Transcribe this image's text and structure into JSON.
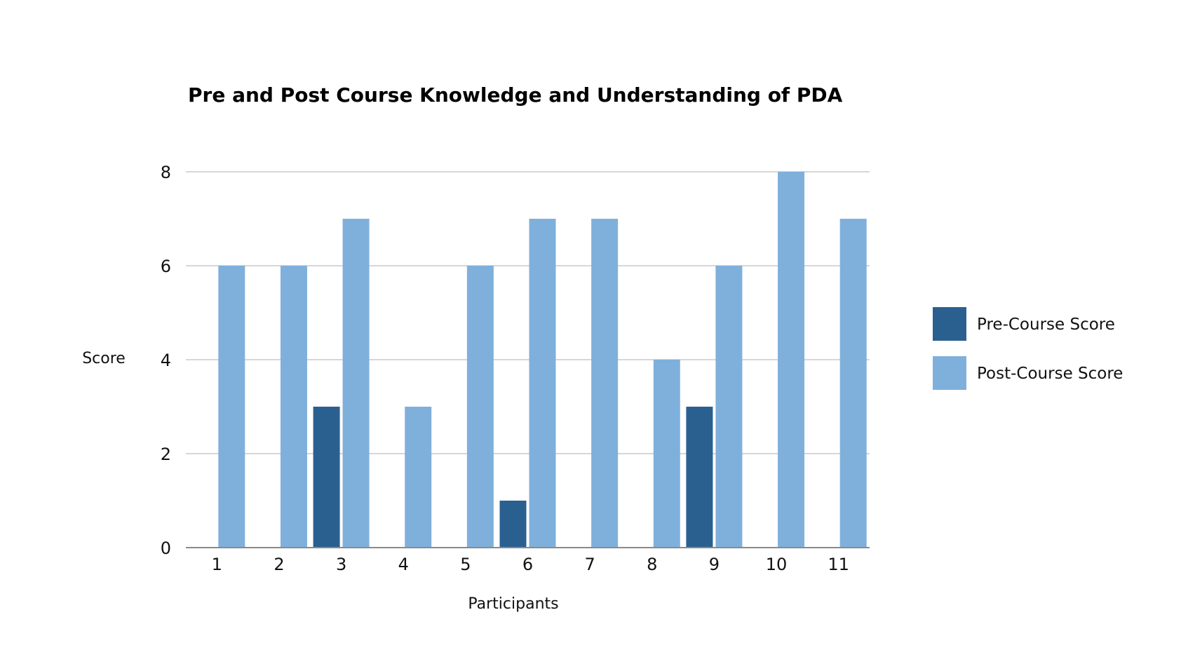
{
  "chart_data": {
    "type": "bar",
    "title": "Pre and Post Course Knowledge and Understanding of PDA",
    "xlabel": "Participants",
    "ylabel": "Score",
    "categories": [
      "1",
      "2",
      "3",
      "4",
      "5",
      "6",
      "7",
      "8",
      "9",
      "10",
      "11"
    ],
    "ylim": [
      0,
      8
    ],
    "yticks": [
      0,
      2,
      4,
      6,
      8
    ],
    "grid": true,
    "legend_position": "right",
    "series": [
      {
        "name": "Pre-Course Score",
        "color": "#2a6090",
        "values": [
          0,
          0,
          3,
          0,
          0,
          1,
          0,
          0,
          3,
          0,
          0
        ]
      },
      {
        "name": "Post-Course Score",
        "color": "#7fb0dc",
        "values": [
          6,
          6,
          7,
          3,
          6,
          7,
          7,
          4,
          6,
          8,
          7
        ]
      }
    ]
  }
}
